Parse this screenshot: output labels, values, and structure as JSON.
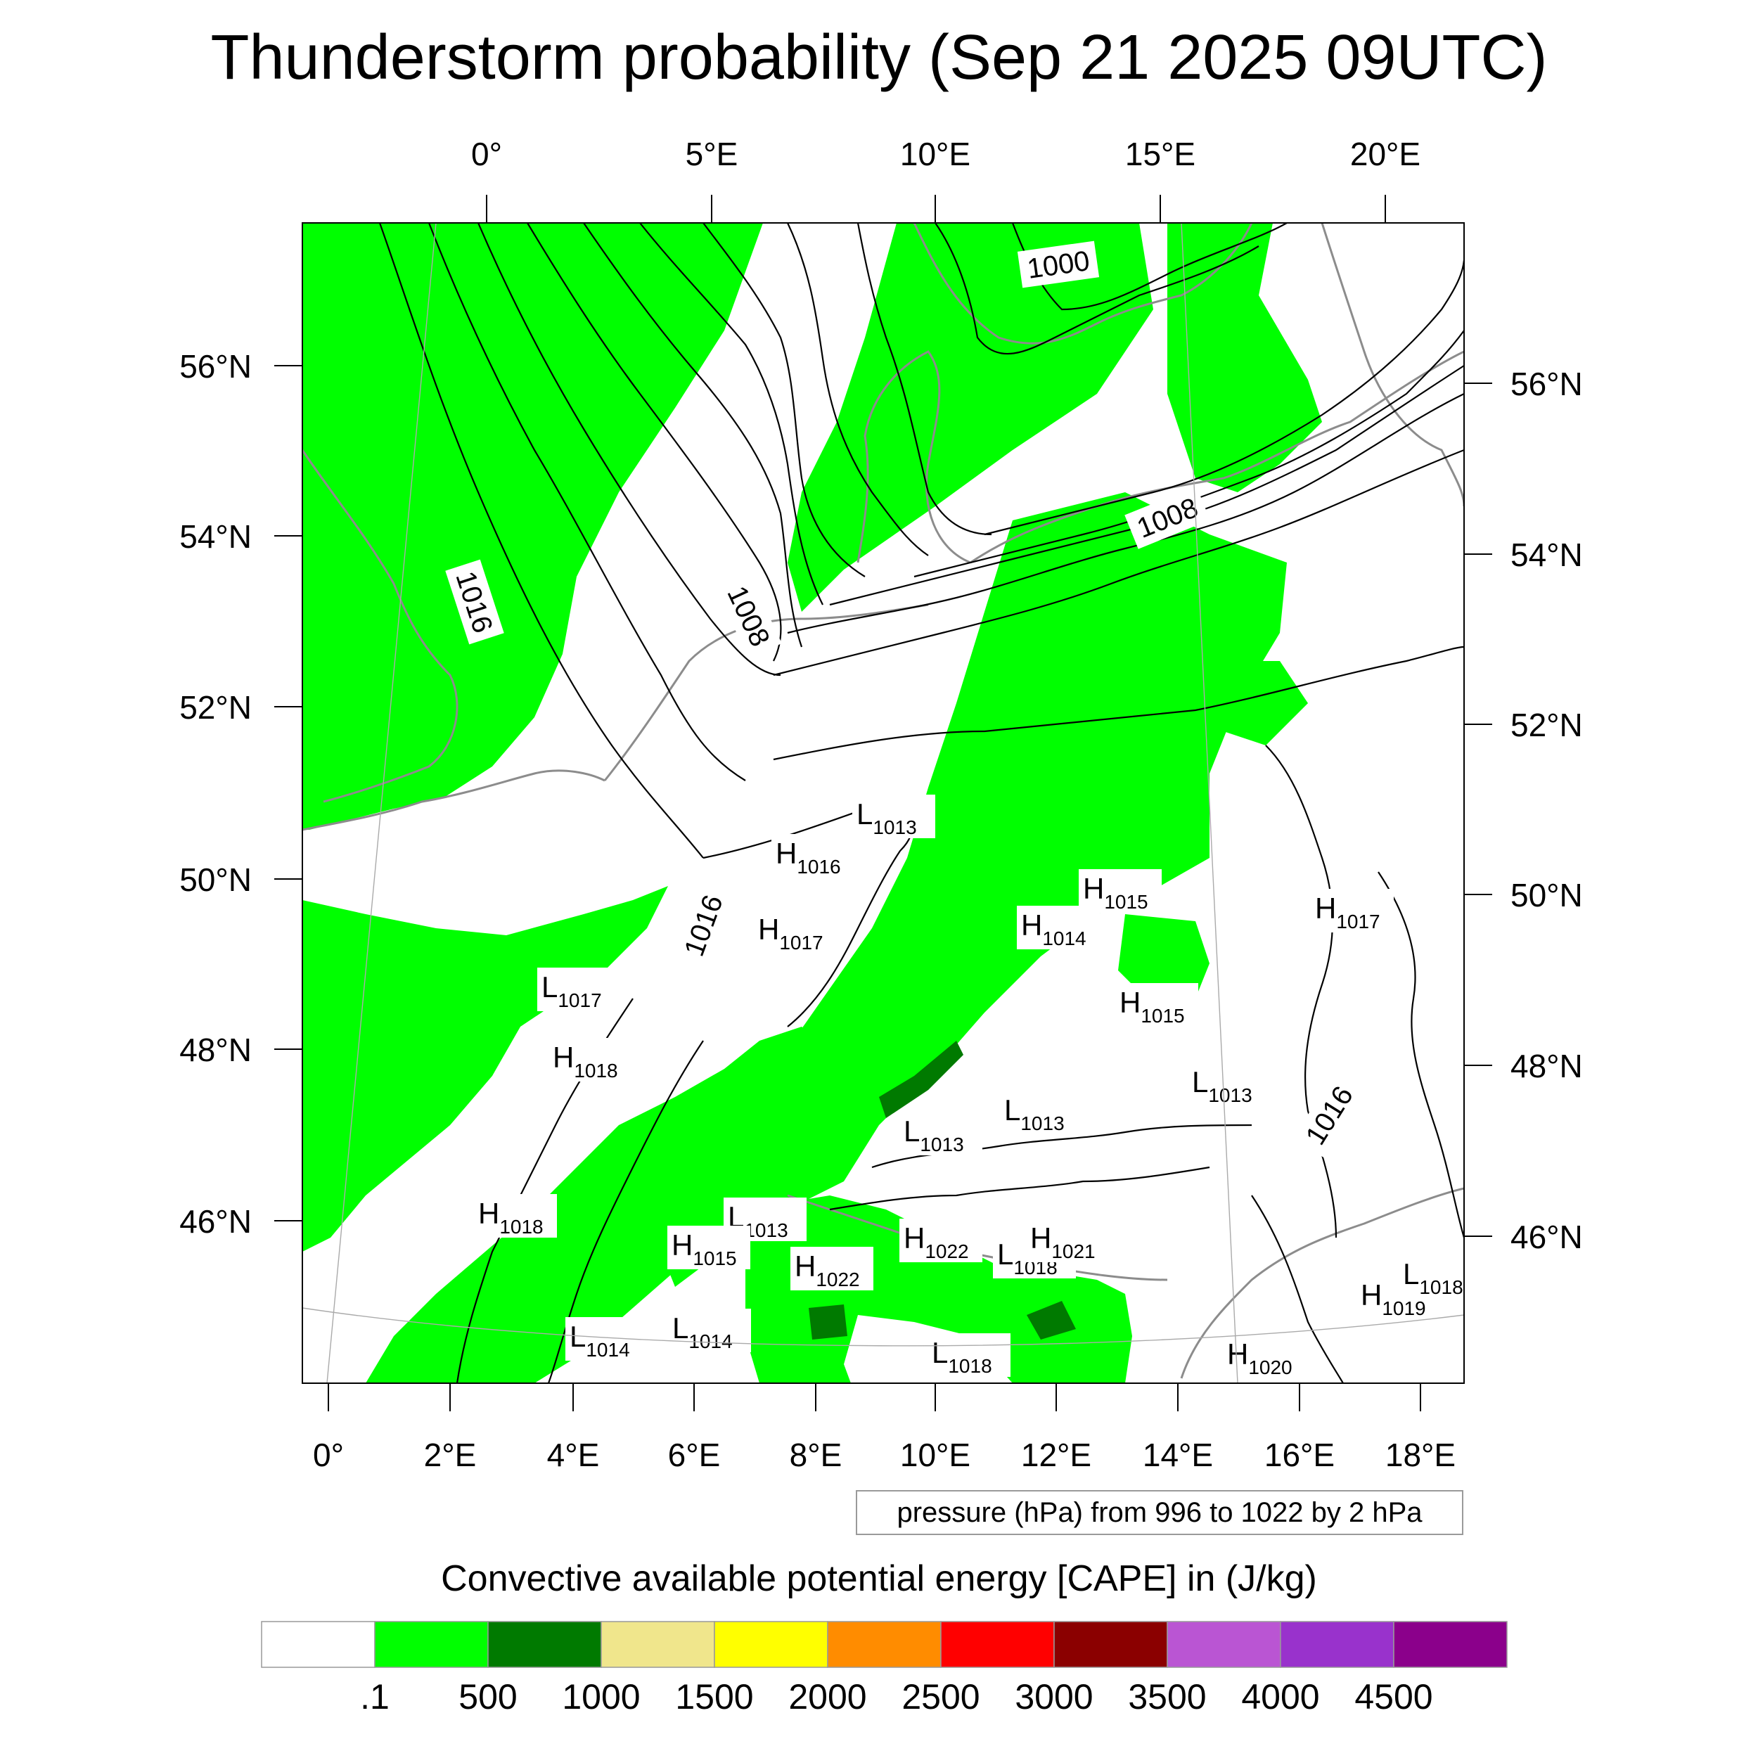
{
  "title": "Thunderstorm probability (Sep 21 2025 09UTC)",
  "top_lon_labels": [
    "0°",
    "5°E",
    "10°E",
    "15°E",
    "20°E"
  ],
  "bottom_lon_labels": [
    "0°",
    "2°E",
    "4°E",
    "6°E",
    "8°E",
    "10°E",
    "12°E",
    "14°E",
    "16°E",
    "18°E"
  ],
  "left_lat_labels": [
    "56°N",
    "54°N",
    "52°N",
    "50°N",
    "48°N",
    "46°N"
  ],
  "right_lat_labels": [
    "56°N",
    "54°N",
    "52°N",
    "50°N",
    "48°N",
    "46°N"
  ],
  "isobar_labels": [
    "1000",
    "1008",
    "1016",
    "1008",
    "1016",
    "1016"
  ],
  "pressure_centers": [
    {
      "type": "L",
      "value": "1013"
    },
    {
      "type": "H",
      "value": "1016"
    },
    {
      "type": "H",
      "value": "1017"
    },
    {
      "type": "L",
      "value": "1017"
    },
    {
      "type": "H",
      "value": "1018"
    },
    {
      "type": "H",
      "value": "1015"
    },
    {
      "type": "H",
      "value": "1014"
    },
    {
      "type": "H",
      "value": "1015"
    },
    {
      "type": "H",
      "value": "1017"
    },
    {
      "type": "L",
      "value": "1013"
    },
    {
      "type": "L",
      "value": "1013"
    },
    {
      "type": "L",
      "value": "1013"
    },
    {
      "type": "H",
      "value": "1018"
    },
    {
      "type": "L",
      "value": "1013"
    },
    {
      "type": "H",
      "value": "1015"
    },
    {
      "type": "H",
      "value": "1022"
    },
    {
      "type": "H",
      "value": "1022"
    },
    {
      "type": "L",
      "value": "1018"
    },
    {
      "type": "H",
      "value": "1021"
    },
    {
      "type": "L",
      "value": "1014"
    },
    {
      "type": "L",
      "value": "1014"
    },
    {
      "type": "L",
      "value": "1018"
    },
    {
      "type": "H",
      "value": "1020"
    },
    {
      "type": "H",
      "value": "1019"
    },
    {
      "type": "L",
      "value": "1018"
    }
  ],
  "pressure_note": "pressure (hPa) from 996 to 1022 by 2 hPa",
  "legend": {
    "title": "Convective available potential energy [CAPE] in (J/kg)",
    "colors": [
      "#ffffff",
      "#00ff00",
      "#007a00",
      "#f0e68c",
      "#ffff00",
      "#ff8c00",
      "#ff0000",
      "#8b0000",
      "#ba55d3",
      "#9932cc",
      "#8b008b"
    ],
    "labels": [
      ".1",
      "500",
      "1000",
      "1500",
      "2000",
      "2500",
      "3000",
      "3500",
      "4000",
      "4500"
    ]
  },
  "colors": {
    "cape_low": "#00ff00",
    "cape_mid": "#007a00",
    "coastline": "#8c8c8c",
    "isobar": "#000000"
  }
}
